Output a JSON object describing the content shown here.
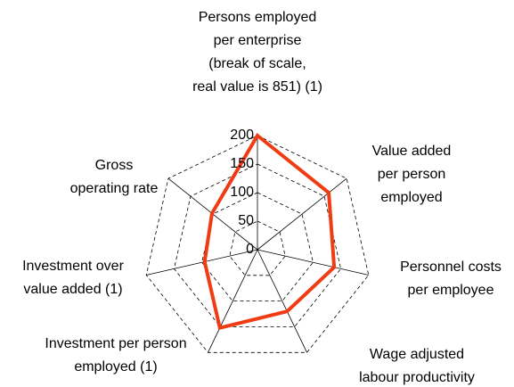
{
  "chart_data": {
    "type": "radar",
    "categories": [
      [
        "Persons employed",
        "per enterprise",
        "(break of scale,",
        "real value is 851) (1)"
      ],
      [
        "Value added",
        "per person",
        "employed"
      ],
      [
        "Personnel costs",
        "per employee"
      ],
      [
        "Wage adjusted",
        "labour productivity"
      ],
      [
        "Investment per person",
        "employed (1)"
      ],
      [
        "Investment over",
        "value added (1)"
      ],
      [
        "Gross",
        "operating rate"
      ]
    ],
    "values": [
      200,
      160,
      138,
      120,
      152,
      95,
      102
    ],
    "color": "#f03c14",
    "ylim": [
      0,
      200
    ],
    "yticks": [
      0,
      50,
      100,
      150,
      200
    ],
    "grid": true
  }
}
